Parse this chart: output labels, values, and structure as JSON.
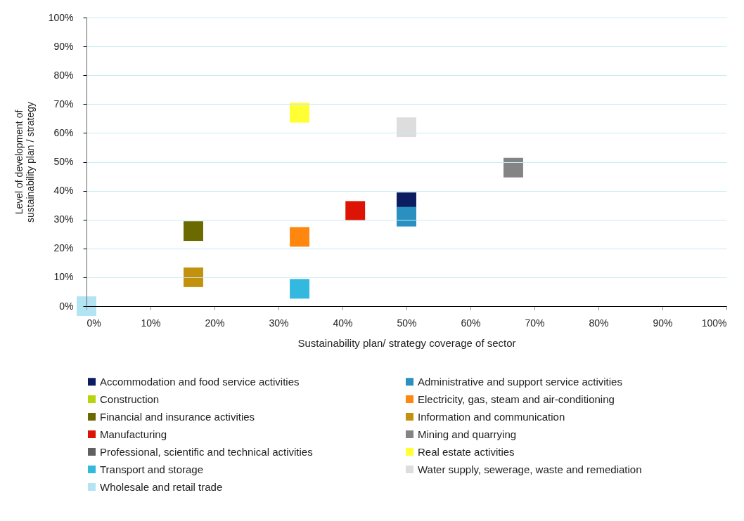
{
  "chart_data": {
    "type": "scatter",
    "xlabel": "Sustainability plan/ strategy coverage of sector",
    "ylabel": "Level of development of\nsustainability plan / strategy",
    "xlim": [
      0,
      100
    ],
    "ylim": [
      0,
      100
    ],
    "xticks": [
      {
        "value": 0,
        "label": "0%"
      },
      {
        "value": 10,
        "label": "10%"
      },
      {
        "value": 20,
        "label": "20%"
      },
      {
        "value": 30,
        "label": "30%"
      },
      {
        "value": 40,
        "label": "40%"
      },
      {
        "value": 50,
        "label": "50%"
      },
      {
        "value": 60,
        "label": "60%"
      },
      {
        "value": 70,
        "label": "70%"
      },
      {
        "value": 80,
        "label": "80%"
      },
      {
        "value": 90,
        "label": "90%"
      },
      {
        "value": 100,
        "label": "100%"
      }
    ],
    "yticks": [
      {
        "value": 0,
        "label": "0%"
      },
      {
        "value": 10,
        "label": "10%"
      },
      {
        "value": 20,
        "label": "20%"
      },
      {
        "value": 30,
        "label": "30%"
      },
      {
        "value": 40,
        "label": "40%"
      },
      {
        "value": 50,
        "label": "50%"
      },
      {
        "value": 60,
        "label": "60%"
      },
      {
        "value": 70,
        "label": "70%"
      },
      {
        "value": 80,
        "label": "80%"
      },
      {
        "value": 90,
        "label": "90%"
      },
      {
        "value": 100,
        "label": "100%"
      }
    ],
    "grid": "y",
    "marker": "square",
    "legend": "bottom",
    "series": [
      {
        "name": "Accommodation and food service activities",
        "color": "#0c1c60",
        "x": [
          50
        ],
        "values": [
          36
        ]
      },
      {
        "name": "Administrative and support service activities",
        "color": "#2a8fc1",
        "x": [
          50
        ],
        "values": [
          31
        ]
      },
      {
        "name": "Construction",
        "color": "#b8d40c",
        "x": [
          null
        ],
        "values": [
          null
        ]
      },
      {
        "name": "Electricity, gas, steam and air-conditioning",
        "color": "#ff8710",
        "x": [
          33.3
        ],
        "values": [
          24
        ]
      },
      {
        "name": "Financial and insurance activities",
        "color": "#6a6a00",
        "x": [
          16.7
        ],
        "values": [
          26
        ]
      },
      {
        "name": "Information and communication",
        "color": "#c2920e",
        "x": [
          16.7
        ],
        "values": [
          10
        ]
      },
      {
        "name": "Manufacturing",
        "color": "#dd1405",
        "x": [
          42
        ],
        "values": [
          33
        ]
      },
      {
        "name": "Mining and quarrying",
        "color": "#848484",
        "x": [
          66.7
        ],
        "values": [
          48
        ]
      },
      {
        "name": "Professional, scientific and technical activities",
        "color": "#606060",
        "x": [
          null
        ],
        "values": [
          null
        ]
      },
      {
        "name": "Real estate activities",
        "color": "#ffff33",
        "x": [
          33.3
        ],
        "values": [
          67
        ]
      },
      {
        "name": "Transport and storage",
        "color": "#33b9e0",
        "x": [
          33.3
        ],
        "values": [
          6
        ]
      },
      {
        "name": "Water supply, sewerage, waste and remediation",
        "color": "#dddddd",
        "x": [
          50
        ],
        "values": [
          62
        ]
      },
      {
        "name": "Wholesale and retail trade",
        "color": "#b3e4f4",
        "x": [
          0
        ],
        "values": [
          0
        ]
      }
    ]
  }
}
